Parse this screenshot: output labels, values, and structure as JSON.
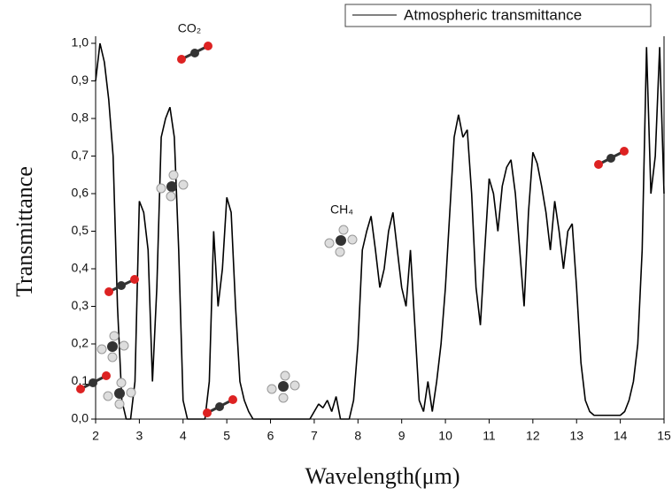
{
  "chart_data": {
    "type": "line",
    "x_label": "Wavelength(μm)",
    "y_label": "Transmittance",
    "legend": "upper right",
    "annotations": [
      "CO₂",
      "CH₄"
    ],
    "xlim": [
      2,
      15
    ],
    "ylim": [
      0,
      1
    ],
    "xticks": [
      2,
      3,
      4,
      5,
      6,
      7,
      8,
      9,
      10,
      11,
      12,
      13,
      14,
      15
    ],
    "yticks": [
      {
        "value": 0,
        "label": "0,0"
      },
      {
        "value": 0.1,
        "label": "0,1"
      },
      {
        "value": 0.2,
        "label": "0,2"
      },
      {
        "value": 0.3,
        "label": "0,3"
      },
      {
        "value": 0.4,
        "label": "0,4"
      },
      {
        "value": 0.5,
        "label": "0,5"
      },
      {
        "value": 0.6,
        "label": "0,6"
      },
      {
        "value": 0.7,
        "label": "0,7"
      },
      {
        "value": 0.8,
        "label": "0,8"
      },
      {
        "value": 0.9,
        "label": "0,9"
      },
      {
        "value": 1,
        "label": "1,0"
      }
    ],
    "x": [
      2.0,
      2.1,
      2.2,
      2.3,
      2.4,
      2.5,
      2.6,
      2.7,
      2.8,
      2.9,
      3.0,
      3.1,
      3.2,
      3.3,
      3.4,
      3.5,
      3.6,
      3.7,
      3.8,
      3.9,
      4.0,
      4.1,
      4.2,
      4.3,
      4.4,
      4.5,
      4.6,
      4.7,
      4.8,
      4.9,
      5.0,
      5.1,
      5.2,
      5.3,
      5.4,
      5.5,
      5.6,
      5.7,
      5.8,
      5.9,
      6.0,
      6.1,
      6.2,
      6.3,
      6.4,
      6.5,
      6.6,
      6.7,
      6.8,
      6.9,
      7.0,
      7.1,
      7.2,
      7.3,
      7.4,
      7.5,
      7.6,
      7.7,
      7.8,
      7.9,
      8.0,
      8.1,
      8.2,
      8.3,
      8.4,
      8.5,
      8.6,
      8.7,
      8.8,
      8.9,
      9.0,
      9.1,
      9.2,
      9.3,
      9.4,
      9.5,
      9.6,
      9.7,
      9.8,
      9.9,
      10.0,
      10.1,
      10.2,
      10.3,
      10.4,
      10.5,
      10.6,
      10.7,
      10.8,
      10.9,
      11.0,
      11.1,
      11.2,
      11.3,
      11.4,
      11.5,
      11.6,
      11.7,
      11.8,
      11.9,
      12.0,
      12.1,
      12.2,
      12.3,
      12.4,
      12.5,
      12.6,
      12.7,
      12.8,
      12.9,
      13.0,
      13.1,
      13.2,
      13.3,
      13.4,
      13.5,
      13.6,
      13.7,
      13.8,
      13.9,
      14.0,
      14.1,
      14.2,
      14.3,
      14.4,
      14.5,
      14.6,
      14.7,
      14.8,
      14.9,
      15.0
    ],
    "series": [
      {
        "name": "Atmospheric transmittance",
        "color": "#000000",
        "values": [
          0.9,
          1.0,
          0.95,
          0.85,
          0.7,
          0.3,
          0.05,
          0,
          0,
          0.1,
          0.58,
          0.55,
          0.45,
          0.1,
          0.35,
          0.75,
          0.8,
          0.83,
          0.75,
          0.45,
          0.05,
          0,
          0,
          0,
          0,
          0,
          0.1,
          0.5,
          0.3,
          0.4,
          0.59,
          0.55,
          0.3,
          0.1,
          0.05,
          0.02,
          0,
          0,
          0,
          0,
          0,
          0,
          0,
          0,
          0,
          0,
          0,
          0,
          0,
          0,
          0.02,
          0.04,
          0.03,
          0.05,
          0.02,
          0.06,
          0,
          0,
          0,
          0.05,
          0.2,
          0.45,
          0.5,
          0.54,
          0.45,
          0.35,
          0.4,
          0.5,
          0.55,
          0.45,
          0.35,
          0.3,
          0.45,
          0.25,
          0.05,
          0.02,
          0.1,
          0.02,
          0.1,
          0.2,
          0.35,
          0.55,
          0.75,
          0.81,
          0.75,
          0.77,
          0.6,
          0.35,
          0.25,
          0.45,
          0.64,
          0.6,
          0.5,
          0.62,
          0.67,
          0.69,
          0.6,
          0.45,
          0.3,
          0.55,
          0.71,
          0.68,
          0.62,
          0.55,
          0.45,
          0.58,
          0.5,
          0.4,
          0.5,
          0.52,
          0.35,
          0.15,
          0.05,
          0.02,
          0.01,
          0.01,
          0.01,
          0.01,
          0.01,
          0.01,
          0.01,
          0.02,
          0.05,
          0.1,
          0.2,
          0.45,
          0.99,
          0.6,
          0.7,
          0.99,
          0.6
        ]
      }
    ]
  }
}
